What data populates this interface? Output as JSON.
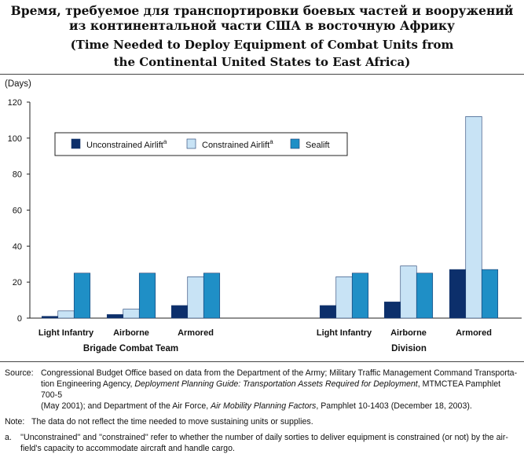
{
  "title": {
    "ru_line1": "Время, требуемое для транспортировки боевых частей и вооружений",
    "ru_line2": "из континентальной части США в восточную Африку",
    "en_line1": "(Time Needed to Deploy Equipment of Combat Units from",
    "en_line2": "the Continental United States to East Africa)"
  },
  "chart_data": {
    "type": "bar",
    "ylabel": "(Days)",
    "ylim": [
      0,
      120
    ],
    "yticks": [
      0,
      20,
      40,
      60,
      80,
      100,
      120
    ],
    "grid": false,
    "legend_position": "top-left",
    "groups": [
      {
        "name": "Brigade Combat Team",
        "categories": [
          "Light Infantry",
          "Airborne",
          "Armored"
        ]
      },
      {
        "name": "Division",
        "categories": [
          "Light Infantry",
          "Airborne",
          "Armored"
        ]
      }
    ],
    "series": [
      {
        "name": "Unconstrained Airlift",
        "superscript": "a",
        "color": "#0c2f6b",
        "values": [
          1,
          2,
          7,
          7,
          9,
          27
        ]
      },
      {
        "name": "Constrained Airlift",
        "superscript": "a",
        "color": "#c8e3f5",
        "values": [
          4,
          5,
          23,
          23,
          29,
          112
        ]
      },
      {
        "name": "Sealift",
        "superscript": "",
        "color": "#1f8fc6",
        "values": [
          25,
          25,
          25,
          25,
          25,
          27
        ]
      }
    ]
  },
  "notes": {
    "source_label": "Source:",
    "source_text_1": "Congressional Budget Office based on data from the Department of the Army; Military Traffic Management Command Transporta-",
    "source_text_2a": "tion Engineering Agency, ",
    "source_text_2b": "Deployment Planning Guide: Transportation Assets Required for Deployment",
    "source_text_2c": ", MTMCTEA Pamphlet 700-5",
    "source_text_3a": "(May 2001); and Department of the Air Force, ",
    "source_text_3b": "Air Mobility Planning Factors",
    "source_text_3c": ", Pamphlet 10-1403 (December 18, 2003).",
    "note_label": "Note:",
    "note_text": "The data do not reflect the time needed to move sustaining units or supplies.",
    "fn_label": "a.",
    "fn_text_1": "''Unconstrained'' and ''constrained'' refer to whether the number of daily sorties to deliver equipment is constrained (or not) by the air-",
    "fn_text_2": "field's capacity to accommodate aircraft and handle cargo."
  }
}
